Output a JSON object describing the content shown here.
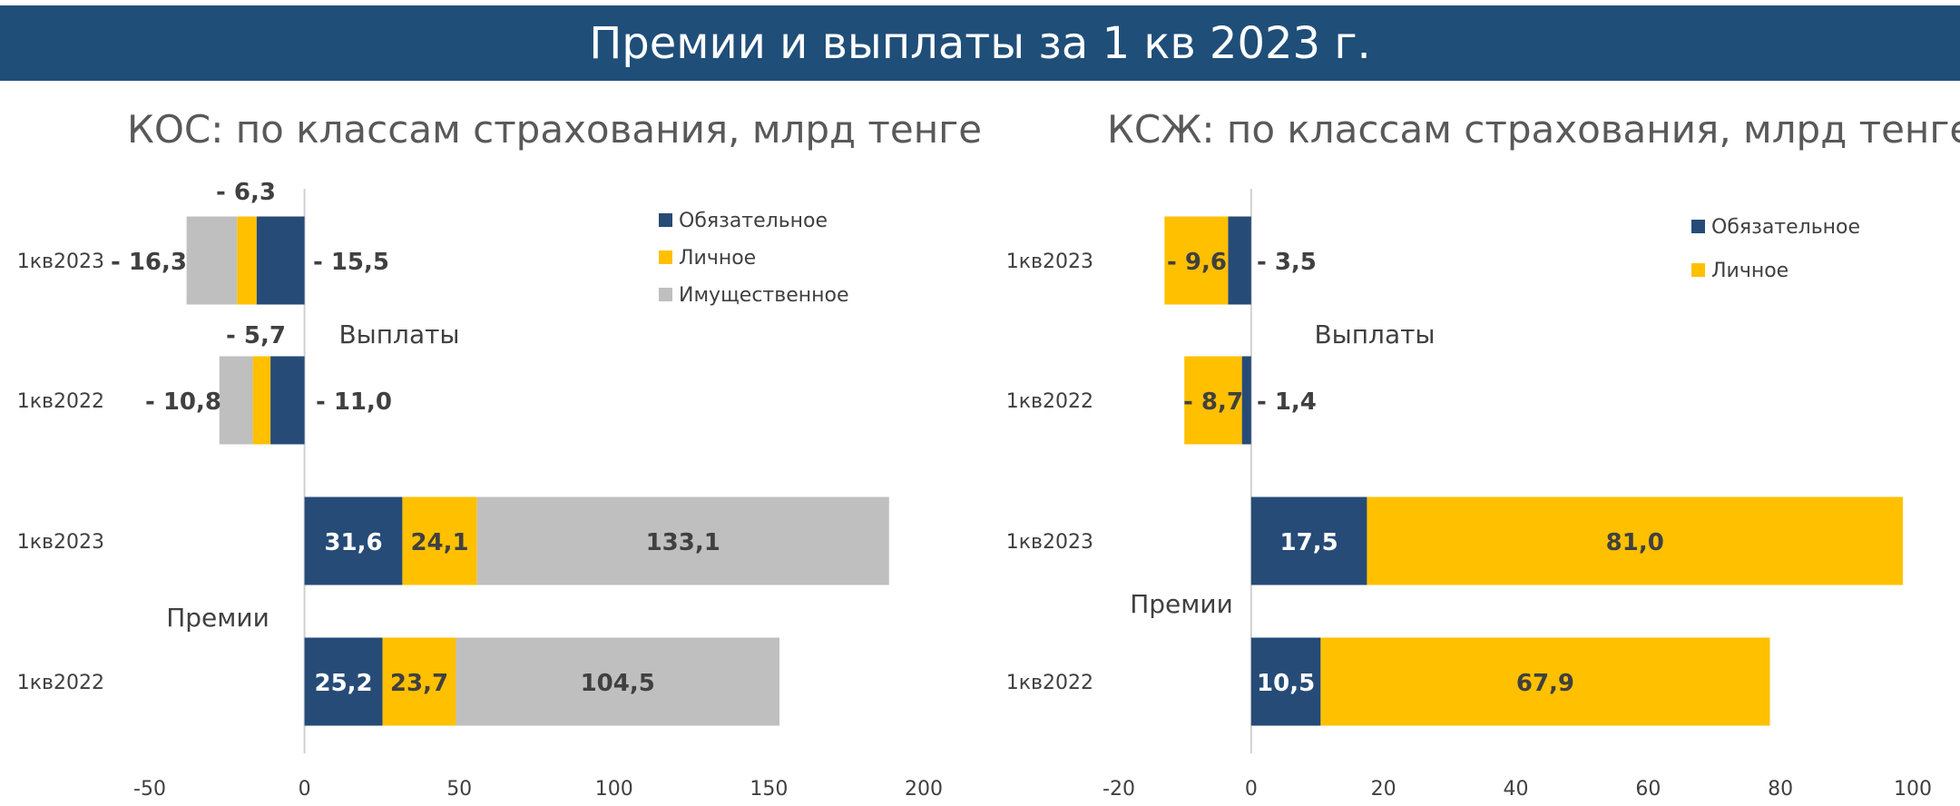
{
  "header": {
    "title": "Премии и выплаты за 1 кв 2023 г."
  },
  "chart_data": [
    {
      "type": "bar",
      "orientation": "horizontal",
      "stacked": true,
      "title": "КОС: по классам страхования, млрд тенге",
      "categories": [
        "1кв2023",
        "1кв2022",
        "1кв2023",
        "1кв2022"
      ],
      "groups": [
        {
          "label": "Выплаты",
          "rows": [
            0,
            1
          ]
        },
        {
          "label": "Премии",
          "rows": [
            2,
            3
          ]
        }
      ],
      "series": [
        {
          "name": "Обязательное",
          "color": "#264b77",
          "values": [
            -15.5,
            -11.0,
            31.6,
            25.2
          ],
          "labels": [
            "- 15,5",
            "- 11,0",
            "31,6",
            "25,2"
          ]
        },
        {
          "name": "Личное",
          "color": "#ffc000",
          "values": [
            -6.3,
            -5.7,
            24.1,
            23.7
          ],
          "labels": [
            "- 6,3",
            "- 5,7",
            "24,1",
            "23,7"
          ]
        },
        {
          "name": "Имущественное",
          "color": "#bfbfbf",
          "values": [
            -16.3,
            -10.8,
            133.1,
            104.5
          ],
          "labels": [
            "- 16,3",
            "- 10,8",
            "133,1",
            "104,5"
          ]
        }
      ],
      "xlim": [
        -50,
        200
      ],
      "xticks": [
        -50,
        0,
        50,
        100,
        150,
        200
      ],
      "legend": "top-right"
    },
    {
      "type": "bar",
      "orientation": "horizontal",
      "stacked": true,
      "title": "КСЖ: по классам страхования, млрд тенге",
      "categories": [
        "1кв2023",
        "1кв2022",
        "1кв2023",
        "1кв2022"
      ],
      "groups": [
        {
          "label": "Выплаты",
          "rows": [
            0,
            1
          ]
        },
        {
          "label": "Премии",
          "rows": [
            2,
            3
          ]
        }
      ],
      "series": [
        {
          "name": "Обязательное",
          "color": "#264b77",
          "values": [
            -3.5,
            -1.4,
            17.5,
            10.5
          ],
          "labels": [
            "- 3,5",
            "- 1,4",
            "17,5",
            "10,5"
          ]
        },
        {
          "name": "Личное",
          "color": "#ffc000",
          "values": [
            -9.6,
            -8.7,
            81.0,
            67.9
          ],
          "labels": [
            "- 9,6",
            "- 8,7",
            "81,0",
            "67,9"
          ]
        }
      ],
      "xlim": [
        -20,
        100
      ],
      "xticks": [
        -20,
        0,
        20,
        40,
        60,
        80,
        100
      ],
      "legend": "top-right"
    }
  ]
}
